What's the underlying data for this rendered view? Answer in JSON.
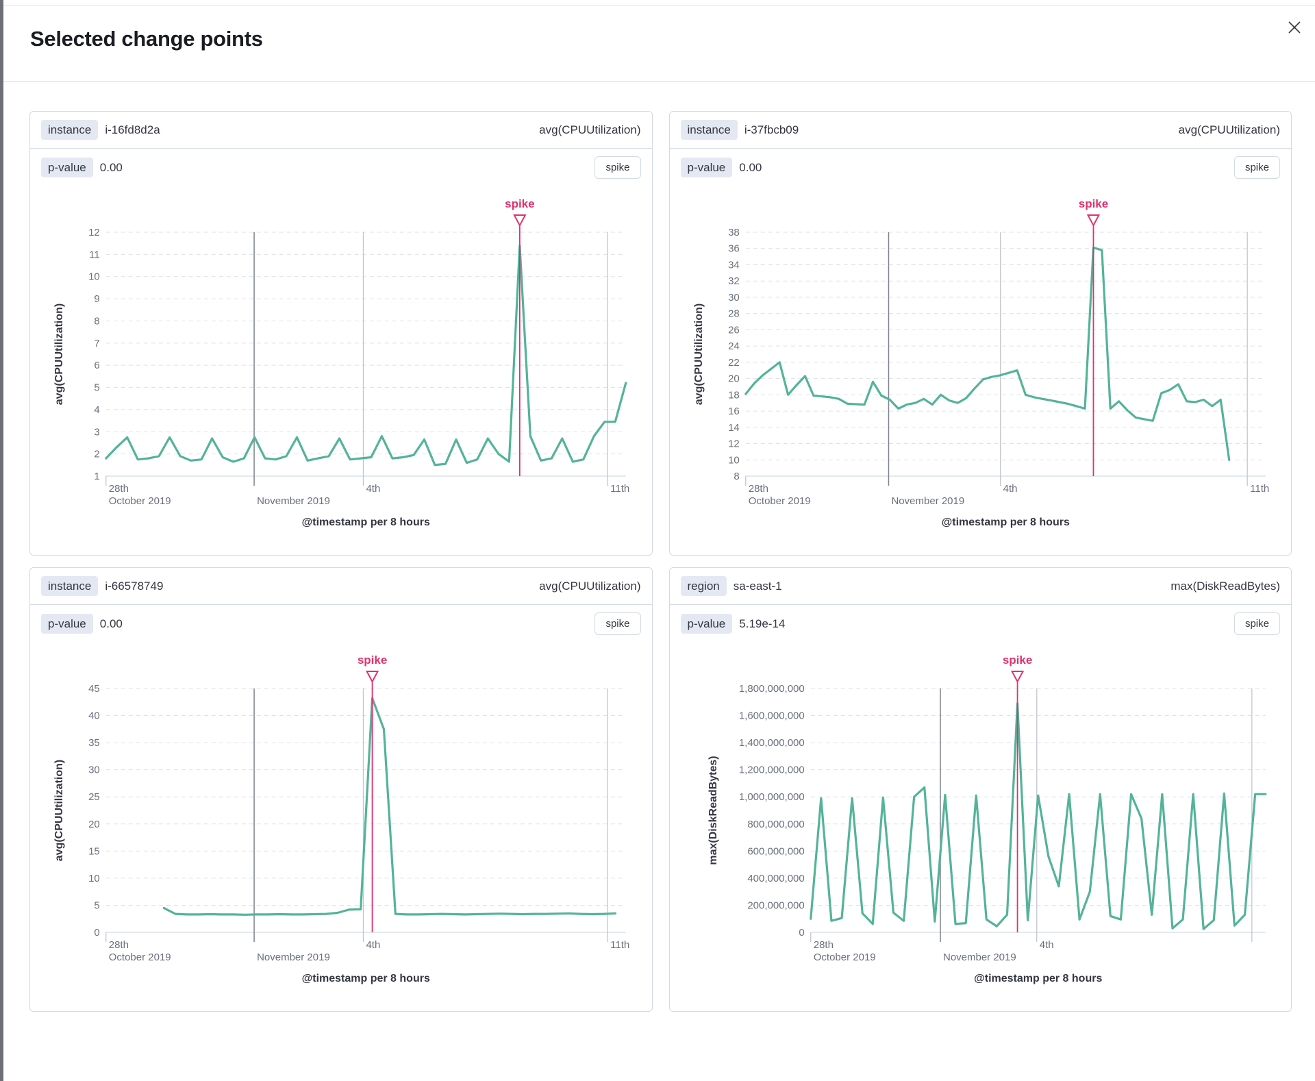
{
  "modal": {
    "title": "Selected change points"
  },
  "colors": {
    "series_green": "#54B399",
    "annotation_pink": "#E0326E",
    "grid_dashed": "#DCE1EA",
    "axis_line": "#D3DAE6",
    "vline_dark": "#7D828C",
    "vline_light": "#C2C6CE",
    "tick_text": "#69707D",
    "axis_title_text": "#343741"
  },
  "panels": [
    {
      "badge_label": "instance",
      "badge_value": "i-16fd8d2a",
      "metric": "avg(CPUUtilization)",
      "pvalue_label": "p-value",
      "pvalue": "0.00",
      "change_type": "spike"
    },
    {
      "badge_label": "instance",
      "badge_value": "i-37fbcb09",
      "metric": "avg(CPUUtilization)",
      "pvalue_label": "p-value",
      "pvalue": "0.00",
      "change_type": "spike"
    },
    {
      "badge_label": "instance",
      "badge_value": "i-66578749",
      "metric": "avg(CPUUtilization)",
      "pvalue_label": "p-value",
      "pvalue": "0.00",
      "change_type": "spike"
    },
    {
      "badge_label": "region",
      "badge_value": "sa-east-1",
      "metric": "max(DiskReadBytes)",
      "pvalue_label": "p-value",
      "pvalue": "5.19e-14",
      "change_type": "spike"
    }
  ],
  "chart_data": [
    {
      "type": "line",
      "ylabel": "avg(CPUUtilization)",
      "xlabel": "@timestamp per 8 hours",
      "annotation": "spike",
      "ylim": [
        1,
        12
      ],
      "yticks": [
        1,
        2,
        3,
        4,
        5,
        6,
        7,
        8,
        9,
        10,
        11,
        12
      ],
      "ytick_format": "number",
      "grid": "dashed-horizontal",
      "legend": false,
      "x_end_frac": 1.0,
      "x_marks": [
        {
          "frac": 0.0,
          "line": "tick",
          "row1": "28th",
          "row2": "October 2019"
        },
        {
          "frac": 0.285,
          "line": "dark",
          "row1": "",
          "row2": "November 2019"
        },
        {
          "frac": 0.495,
          "line": "light",
          "row1": "4th",
          "row2": ""
        },
        {
          "frac": 0.965,
          "line": "light",
          "row1": "11th",
          "row2": ""
        }
      ],
      "spike_index": 39,
      "values": [
        1.8,
        2.3,
        2.75,
        1.75,
        1.8,
        1.9,
        2.75,
        1.9,
        1.7,
        1.75,
        2.7,
        1.85,
        1.65,
        1.8,
        2.75,
        1.8,
        1.75,
        1.9,
        2.75,
        1.7,
        1.8,
        1.9,
        2.7,
        1.75,
        1.8,
        1.85,
        2.8,
        1.8,
        1.85,
        1.95,
        2.65,
        1.5,
        1.55,
        2.65,
        1.6,
        1.75,
        2.7,
        2.0,
        1.65,
        11.4,
        2.8,
        1.7,
        1.8,
        2.7,
        1.65,
        1.75,
        2.8,
        3.45,
        3.45,
        5.2
      ]
    },
    {
      "type": "line",
      "ylabel": "avg(CPUUtilization)",
      "xlabel": "@timestamp per 8 hours",
      "annotation": "spike",
      "ylim": [
        8,
        38
      ],
      "yticks": [
        8,
        10,
        12,
        14,
        16,
        18,
        20,
        22,
        24,
        26,
        28,
        30,
        32,
        34,
        36,
        38
      ],
      "ytick_format": "number",
      "grid": "dashed-horizontal",
      "legend": false,
      "x_end_frac": 0.93,
      "x_marks": [
        {
          "frac": 0.0,
          "line": "tick",
          "row1": "28th",
          "row2": "October 2019"
        },
        {
          "frac": 0.275,
          "line": "dark",
          "row1": "",
          "row2": "November 2019"
        },
        {
          "frac": 0.49,
          "line": "light",
          "row1": "4th",
          "row2": ""
        },
        {
          "frac": 0.965,
          "line": "light",
          "row1": "11th",
          "row2": ""
        }
      ],
      "spike_index": 41,
      "values": [
        18.1,
        19.4,
        20.4,
        21.2,
        22.0,
        18.0,
        19.2,
        20.3,
        17.9,
        17.8,
        17.7,
        17.5,
        16.9,
        16.85,
        16.8,
        19.6,
        17.9,
        17.4,
        16.3,
        16.8,
        17.0,
        17.5,
        16.8,
        18.0,
        17.3,
        17.0,
        17.6,
        18.8,
        19.9,
        20.2,
        20.4,
        20.7,
        21.0,
        18.0,
        17.7,
        17.5,
        17.3,
        17.1,
        16.9,
        16.6,
        16.3,
        36.1,
        35.8,
        16.3,
        17.2,
        16.1,
        15.2,
        15.0,
        14.8,
        18.2,
        18.6,
        19.3,
        17.2,
        17.1,
        17.4,
        16.6,
        17.4,
        10.0
      ]
    },
    {
      "type": "line",
      "ylabel": "avg(CPUUtilization)",
      "xlabel": "@timestamp per 8 hours",
      "annotation": "spike",
      "ylim": [
        0,
        45
      ],
      "yticks": [
        0,
        5,
        10,
        15,
        20,
        25,
        30,
        35,
        40,
        45
      ],
      "ytick_format": "number",
      "grid": "dashed-horizontal",
      "legend": false,
      "x_end_frac": 0.98,
      "x_marks": [
        {
          "frac": 0.0,
          "line": "tick",
          "row1": "28th",
          "row2": "October 2019"
        },
        {
          "frac": 0.285,
          "line": "dark",
          "row1": "",
          "row2": "November 2019"
        },
        {
          "frac": 0.495,
          "line": "light",
          "row1": "4th",
          "row2": ""
        },
        {
          "frac": 0.965,
          "line": "light",
          "row1": "11th",
          "row2": ""
        }
      ],
      "spike_index": 23,
      "values": [
        null,
        null,
        null,
        null,
        null,
        4.5,
        3.4,
        3.3,
        3.3,
        3.35,
        3.3,
        3.3,
        3.25,
        3.3,
        3.3,
        3.35,
        3.3,
        3.3,
        3.35,
        3.4,
        3.6,
        4.2,
        4.25,
        43.2,
        37.5,
        3.4,
        3.3,
        3.3,
        3.35,
        3.4,
        3.35,
        3.3,
        3.35,
        3.4,
        3.45,
        3.4,
        3.35,
        3.4,
        3.4,
        3.45,
        3.5,
        3.4,
        3.35,
        3.4,
        3.5
      ]
    },
    {
      "type": "line",
      "ylabel": "max(DiskReadBytes)",
      "xlabel": "@timestamp per 8 hours",
      "annotation": "spike",
      "ylim": [
        0,
        1800000000
      ],
      "yticks": [
        0,
        200000000,
        400000000,
        600000000,
        800000000,
        1000000000,
        1200000000,
        1400000000,
        1600000000,
        1800000000
      ],
      "ytick_format": "thousands",
      "grid": "dashed-horizontal",
      "legend": false,
      "x_end_frac": 1.0,
      "x_marks": [
        {
          "frac": 0.0,
          "line": "tick",
          "row1": "28th",
          "row2": "October 2019"
        },
        {
          "frac": 0.285,
          "line": "dark",
          "row1": "",
          "row2": "November 2019"
        },
        {
          "frac": 0.497,
          "line": "light",
          "row1": "4th",
          "row2": ""
        },
        {
          "frac": 0.97,
          "line": "light",
          "row1": "",
          "row2": ""
        }
      ],
      "spike_index": 20,
      "values": [
        100000000,
        990000000,
        85000000,
        105000000,
        990000000,
        140000000,
        62000000,
        995000000,
        145000000,
        85000000,
        1000000000,
        1070000000,
        80000000,
        1015000000,
        62000000,
        68000000,
        1010000000,
        95000000,
        45000000,
        130000000,
        1690000000,
        90000000,
        1010000000,
        560000000,
        340000000,
        1020000000,
        95000000,
        300000000,
        1020000000,
        120000000,
        95000000,
        1020000000,
        840000000,
        130000000,
        1020000000,
        30000000,
        95000000,
        1020000000,
        25000000,
        90000000,
        1025000000,
        50000000,
        130000000,
        1020000000,
        1020000000
      ]
    }
  ]
}
